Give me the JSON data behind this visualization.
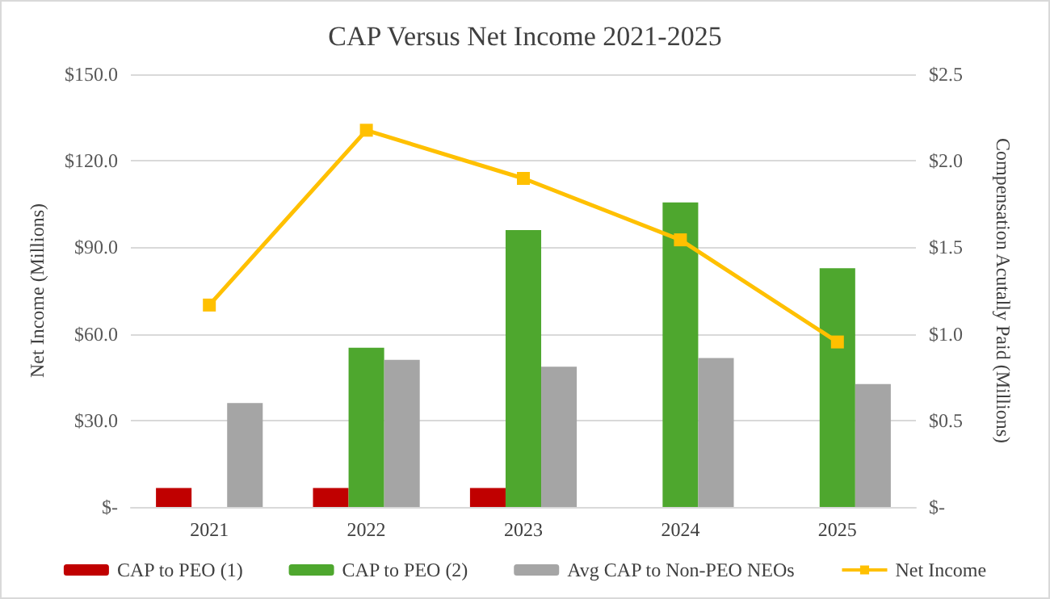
{
  "chart_data": {
    "type": "bar",
    "title": "CAP Versus Net Income 2021-2025",
    "ylabel": "Net Income (Millions)",
    "y2label": "Compensation Acutally Paid (Millions)",
    "categories": [
      "2021",
      "2022",
      "2023",
      "2024",
      "2025"
    ],
    "series": [
      {
        "name": "CAP to PEO (1)",
        "color": "#c00000",
        "axis": "y2",
        "values": [
          0.11,
          0.11,
          0.11,
          null,
          null
        ]
      },
      {
        "name": "CAP to PEO (2)",
        "color": "#4ea72e",
        "axis": "y2",
        "values": [
          null,
          0.92,
          1.6,
          1.76,
          1.38
        ]
      },
      {
        "name": "Avg CAP to Non-PEO NEOs",
        "color": "#a5a5a5",
        "axis": "y2",
        "values": [
          0.6,
          0.85,
          0.81,
          0.86,
          0.71
        ]
      },
      {
        "name": "Net Income",
        "type": "line",
        "color": "#ffc000",
        "marker": "square",
        "values": [
          70.0,
          130.6,
          113.9,
          92.6,
          57.2
        ]
      }
    ],
    "ylim": [
      0,
      150
    ],
    "yticks": [
      {
        "value": 0,
        "label": "$-"
      },
      {
        "value": 30,
        "label": "$30.0"
      },
      {
        "value": 60,
        "label": "$60.0"
      },
      {
        "value": 90,
        "label": "$90.0"
      },
      {
        "value": 120,
        "label": "$120.0"
      },
      {
        "value": 150,
        "label": "$150.0"
      }
    ],
    "y2lim": [
      0,
      2.5
    ],
    "y2ticks": [
      {
        "value": 0,
        "label": "$-"
      },
      {
        "value": 0.5,
        "label": "$0.5"
      },
      {
        "value": 1,
        "label": "$1.0"
      },
      {
        "value": 1.5,
        "label": "$1.5"
      },
      {
        "value": 2,
        "label": "$2.0"
      },
      {
        "value": 2.5,
        "label": "$2.5"
      }
    ],
    "grid": "y",
    "legend": "bottom"
  }
}
